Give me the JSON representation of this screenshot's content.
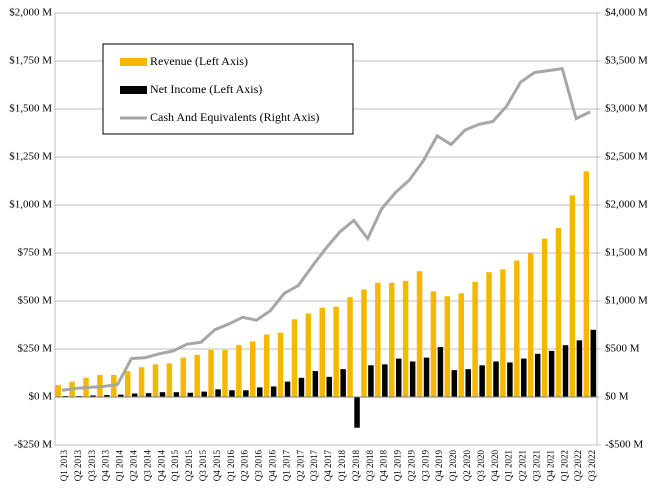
{
  "chart_data": {
    "type": "bar-line",
    "categories": [
      "Q1 2013",
      "Q2 2013",
      "Q3 2013",
      "Q4 2013",
      "Q1 2014",
      "Q2 2014",
      "Q3 2014",
      "Q4 2014",
      "Q1 2015",
      "Q2 2015",
      "Q3 2015",
      "Q4 2015",
      "Q1 2016",
      "Q2 2016",
      "Q3 2016",
      "Q4 2016",
      "Q1 2017",
      "Q2 2017",
      "Q3 2017",
      "Q4 2017",
      "Q1 2018",
      "Q2 2018",
      "Q3 2018",
      "Q4 2018",
      "Q1 2019",
      "Q2 2019",
      "Q3 2019",
      "Q4 2019",
      "Q1 2020",
      "Q2 2020",
      "Q3 2020",
      "Q4 2020",
      "Q1 2021",
      "Q2 2021",
      "Q3 2021",
      "Q4 2021",
      "Q1 2022",
      "Q2 2022",
      "Q3 2022"
    ],
    "series": [
      {
        "name": "Revenue (Left Axis)",
        "color": "#f5b800",
        "kind": "bar",
        "values": [
          62,
          80,
          100,
          115,
          115,
          135,
          155,
          170,
          175,
          205,
          220,
          245,
          245,
          270,
          290,
          325,
          335,
          405,
          435,
          465,
          470,
          520,
          560,
          595,
          595,
          605,
          655,
          550,
          525,
          540,
          600,
          650,
          665,
          710,
          750,
          825,
          880,
          1050,
          1175
        ]
      },
      {
        "name": "Net Income (Left Axis)",
        "color": "#000000",
        "kind": "bar",
        "values": [
          5,
          5,
          8,
          10,
          12,
          18,
          20,
          25,
          25,
          22,
          28,
          40,
          35,
          35,
          50,
          55,
          80,
          100,
          135,
          105,
          145,
          -160,
          165,
          170,
          200,
          185,
          205,
          260,
          140,
          145,
          165,
          185,
          180,
          200,
          225,
          240,
          270,
          295,
          350
        ]
      },
      {
        "name": "Cash And Equivalents (Right Axis)",
        "color": "#a6a6a6",
        "kind": "line",
        "axis": "y2",
        "values": [
          70,
          90,
          100,
          110,
          130,
          400,
          410,
          450,
          480,
          550,
          570,
          700,
          760,
          830,
          800,
          900,
          1080,
          1160,
          1360,
          1550,
          1720,
          1840,
          1650,
          1960,
          2130,
          2260,
          2460,
          2720,
          2630,
          2780,
          2840,
          2870,
          3030,
          3280,
          3380,
          3400,
          3420,
          2900,
          2970
        ]
      }
    ],
    "ylim": [
      -250,
      2000
    ],
    "yticks": [
      {
        "value": -250,
        "label": "-$250 M"
      },
      {
        "value": 0,
        "label": "$0 M"
      },
      {
        "value": 250,
        "label": "$250 M"
      },
      {
        "value": 500,
        "label": "$500 M"
      },
      {
        "value": 750,
        "label": "$750 M"
      },
      {
        "value": 1000,
        "label": "$1,000 M"
      },
      {
        "value": 1250,
        "label": "$1,250 M"
      },
      {
        "value": 1500,
        "label": "$1,500 M"
      },
      {
        "value": 1750,
        "label": "$1,750 M"
      },
      {
        "value": 2000,
        "label": "$2,000 M"
      }
    ],
    "y2lim": [
      -500,
      4000
    ],
    "y2ticks": [
      {
        "value": -500,
        "label": "-$500 M"
      },
      {
        "value": 0,
        "label": "$0 M"
      },
      {
        "value": 500,
        "label": "$500 M"
      },
      {
        "value": 1000,
        "label": "$1,000 M"
      },
      {
        "value": 1500,
        "label": "$1,500 M"
      },
      {
        "value": 2000,
        "label": "$2,000 M"
      },
      {
        "value": 2500,
        "label": "$2,500 M"
      },
      {
        "value": 3000,
        "label": "$3,000 M"
      },
      {
        "value": 3500,
        "label": "$3,500 M"
      },
      {
        "value": 4000,
        "label": "$4,000 M"
      }
    ],
    "grid": true,
    "legend": "upper-left"
  }
}
